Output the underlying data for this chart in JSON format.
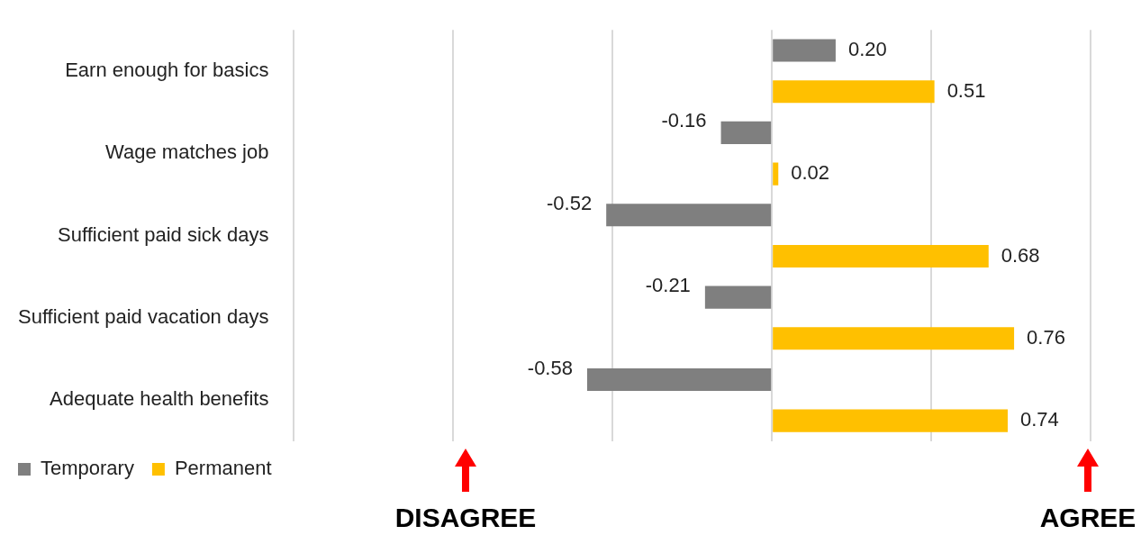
{
  "chart_data": {
    "type": "bar",
    "orientation": "horizontal",
    "categories": [
      "Earn enough for basics",
      "Wage matches job",
      "Sufficient paid sick days",
      "Sufficient paid vacation days",
      "Adequate health benefits"
    ],
    "series": [
      {
        "name": "Temporary",
        "color": "#7f7f7f",
        "values": [
          0.2,
          -0.16,
          -0.52,
          -0.21,
          -0.58
        ],
        "value_labels": [
          "0.20",
          "-0.16",
          "-0.52",
          "-0.21",
          "-0.58"
        ]
      },
      {
        "name": "Permanent",
        "color": "#ffc000",
        "values": [
          0.51,
          0.02,
          0.68,
          0.76,
          0.74
        ],
        "value_labels": [
          "0.51",
          "0.02",
          "0.68",
          "0.76",
          "0.74"
        ]
      }
    ],
    "xlim": [
      -1.5,
      1
    ],
    "tick_labels": "y",
    "grid": "x",
    "legend": "bottom left",
    "annotations": [
      "DISAGREE",
      "AGREE"
    ]
  }
}
